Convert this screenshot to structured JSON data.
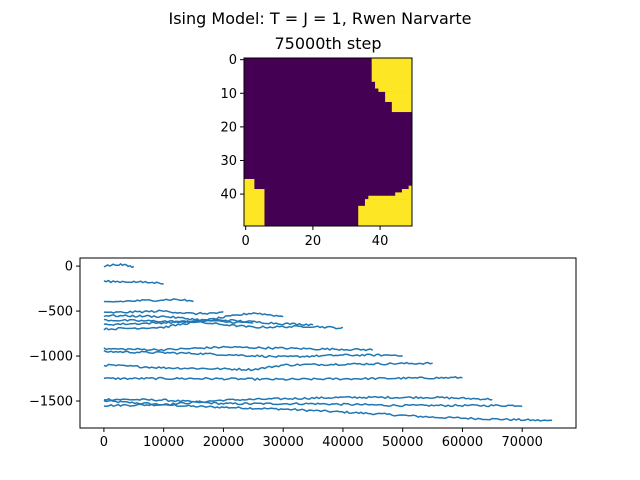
{
  "figure": {
    "suptitle": "Ising Model: T = J = 1, Rwen Narvarte"
  },
  "chart_data": [
    {
      "type": "heatmap",
      "title": "75000th step",
      "grid_size": 50,
      "colors": {
        "low": "#440154",
        "high": "#fde725"
      },
      "x_ticks": [
        0,
        20,
        40
      ],
      "y_ticks": [
        0,
        10,
        20,
        30,
        40
      ],
      "high_regions": [
        {
          "row_start": 0,
          "row_end": 7,
          "col_start": 38,
          "col_end": 50
        },
        {
          "row_start": 7,
          "row_end": 9,
          "col_start": 39,
          "col_end": 50
        },
        {
          "row_start": 9,
          "row_end": 10,
          "col_start": 40,
          "col_end": 50
        },
        {
          "row_start": 10,
          "row_end": 13,
          "col_start": 42,
          "col_end": 50
        },
        {
          "row_start": 13,
          "row_end": 16,
          "col_start": 44,
          "col_end": 50
        },
        {
          "row_start": 36,
          "row_end": 39,
          "col_start": 0,
          "col_end": 3
        },
        {
          "row_start": 39,
          "row_end": 50,
          "col_start": 0,
          "col_end": 6
        },
        {
          "row_start": 38,
          "row_end": 39,
          "col_start": 49,
          "col_end": 50
        },
        {
          "row_start": 39,
          "row_end": 40,
          "col_start": 47,
          "col_end": 50
        },
        {
          "row_start": 40,
          "row_end": 41,
          "col_start": 45,
          "col_end": 50
        },
        {
          "row_start": 41,
          "row_end": 42,
          "col_start": 37,
          "col_end": 50
        },
        {
          "row_start": 42,
          "row_end": 44,
          "col_start": 36,
          "col_end": 50
        },
        {
          "row_start": 44,
          "row_end": 50,
          "col_start": 34,
          "col_end": 50
        }
      ]
    },
    {
      "type": "line",
      "title": "",
      "xlabel": "",
      "ylabel": "",
      "xlim": [
        -4000,
        79000
      ],
      "ylim": [
        -1800,
        90
      ],
      "x_ticks": [
        0,
        10000,
        20000,
        30000,
        40000,
        50000,
        60000,
        70000
      ],
      "y_ticks": [
        0,
        -500,
        -1000,
        -1500
      ],
      "y_tick_labels": [
        "0",
        "−500",
        "−1000",
        "−1500"
      ],
      "color": "#1f77b4",
      "series": [
        {
          "end_x": 75000,
          "points": [
            [
              0,
              -1500
            ],
            [
              15000,
              -1560
            ],
            [
              30000,
              -1590
            ],
            [
              45000,
              -1640
            ],
            [
              55000,
              -1680
            ],
            [
              65000,
              -1700
            ],
            [
              75000,
              -1720
            ]
          ]
        },
        {
          "end_x": 70000,
          "points": [
            [
              0,
              -1480
            ],
            [
              10000,
              -1490
            ],
            [
              20000,
              -1530
            ],
            [
              35000,
              -1530
            ],
            [
              50000,
              -1550
            ],
            [
              70000,
              -1550
            ]
          ]
        },
        {
          "end_x": 65000,
          "points": [
            [
              0,
              -1550
            ],
            [
              10000,
              -1540
            ],
            [
              20000,
              -1490
            ],
            [
              40000,
              -1460
            ],
            [
              55000,
              -1460
            ],
            [
              65000,
              -1480
            ]
          ]
        },
        {
          "end_x": 60000,
          "points": [
            [
              0,
              -1250
            ],
            [
              15000,
              -1250
            ],
            [
              30000,
              -1260
            ],
            [
              45000,
              -1250
            ],
            [
              60000,
              -1240
            ]
          ]
        },
        {
          "end_x": 55000,
          "points": [
            [
              0,
              -1100
            ],
            [
              10000,
              -1130
            ],
            [
              25000,
              -1150
            ],
            [
              30000,
              -1100
            ],
            [
              40000,
              -1090
            ],
            [
              55000,
              -1080
            ]
          ]
        },
        {
          "end_x": 50000,
          "points": [
            [
              0,
              -950
            ],
            [
              15000,
              -970
            ],
            [
              30000,
              -1010
            ],
            [
              40000,
              -990
            ],
            [
              50000,
              -990
            ]
          ]
        },
        {
          "end_x": 45000,
          "points": [
            [
              0,
              -920
            ],
            [
              10000,
              -930
            ],
            [
              20000,
              -900
            ],
            [
              35000,
              -920
            ],
            [
              45000,
              -930
            ]
          ]
        },
        {
          "end_x": 40000,
          "points": [
            [
              0,
              -600
            ],
            [
              15000,
              -620
            ],
            [
              25000,
              -680
            ],
            [
              35000,
              -670
            ],
            [
              40000,
              -690
            ]
          ]
        },
        {
          "end_x": 35000,
          "points": [
            [
              0,
              -650
            ],
            [
              10000,
              -630
            ],
            [
              20000,
              -600
            ],
            [
              30000,
              -640
            ],
            [
              35000,
              -650
            ]
          ]
        },
        {
          "end_x": 30000,
          "points": [
            [
              0,
              -700
            ],
            [
              10000,
              -680
            ],
            [
              20000,
              -570
            ],
            [
              25000,
              -520
            ],
            [
              30000,
              -560
            ]
          ]
        },
        {
          "end_x": 25000,
          "points": [
            [
              0,
              -550
            ],
            [
              10000,
              -560
            ],
            [
              20000,
              -620
            ],
            [
              25000,
              -630
            ]
          ]
        },
        {
          "end_x": 20000,
          "points": [
            [
              0,
              -520
            ],
            [
              10000,
              -500
            ],
            [
              15000,
              -530
            ],
            [
              20000,
              -520
            ]
          ]
        },
        {
          "end_x": 15000,
          "points": [
            [
              0,
              -400
            ],
            [
              8000,
              -380
            ],
            [
              12000,
              -370
            ],
            [
              15000,
              -390
            ]
          ]
        },
        {
          "end_x": 10000,
          "points": [
            [
              0,
              -170
            ],
            [
              5000,
              -175
            ],
            [
              10000,
              -190
            ]
          ]
        },
        {
          "end_x": 5000,
          "points": [
            [
              0,
              0
            ],
            [
              2500,
              20
            ],
            [
              5000,
              -10
            ]
          ]
        }
      ]
    }
  ]
}
